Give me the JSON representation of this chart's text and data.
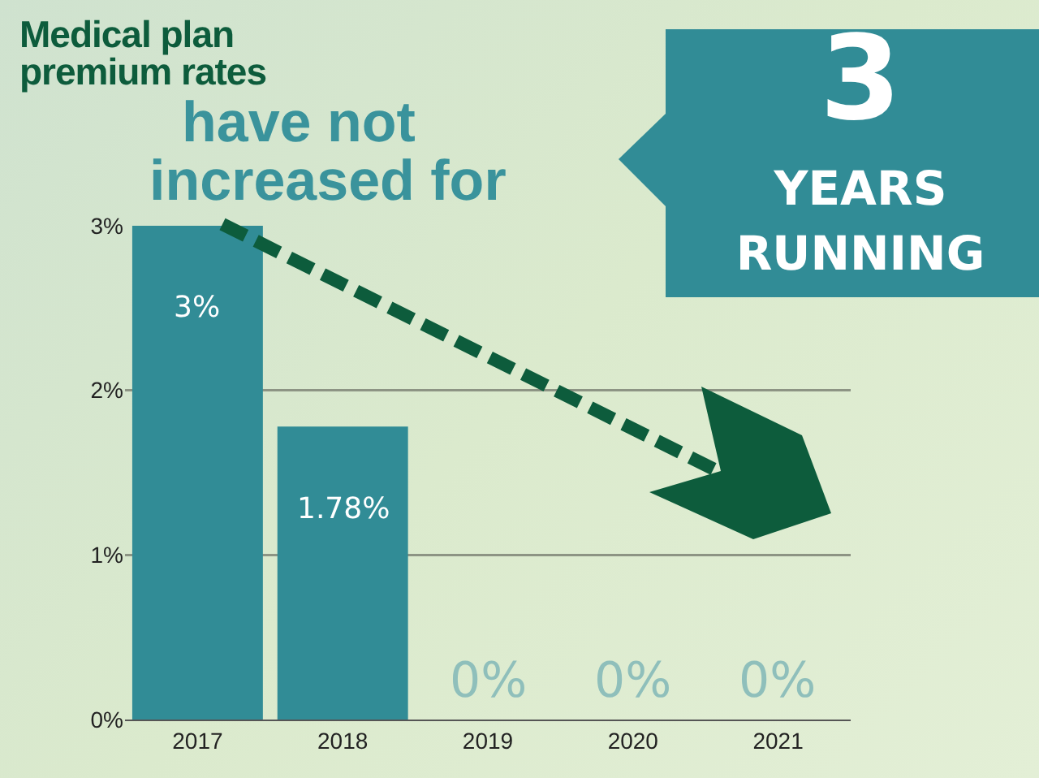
{
  "chart_data": {
    "type": "bar",
    "title": "Medical plan premium rates",
    "subtitle": "have not increased for",
    "annotations": [
      "3",
      "YEARS RUNNING"
    ],
    "categories": [
      "2017",
      "2018",
      "2019",
      "2020",
      "2021"
    ],
    "values": [
      3,
      1.78,
      0,
      0,
      0
    ],
    "color": "#318c96",
    "value_labels": [
      "3%",
      "1.78%",
      "0%",
      "0%",
      "0%"
    ],
    "ylim": [
      0,
      3
    ],
    "yticks": [
      {
        "value": 0,
        "label": "0%"
      },
      {
        "value": 1,
        "label": "1%"
      },
      {
        "value": 2,
        "label": "2%"
      },
      {
        "value": 3,
        "label": "3%"
      }
    ],
    "grid": "y"
  }
}
